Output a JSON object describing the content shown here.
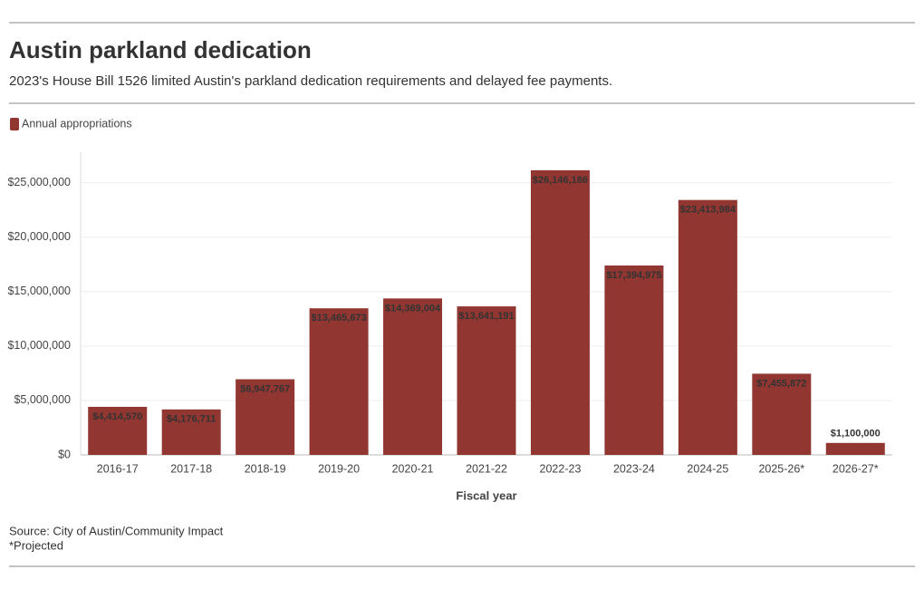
{
  "chart_data": {
    "type": "bar",
    "title": "Austin parkland dedication",
    "subtitle": "2023's House Bill 1526 limited Austin's parkland dedication requirements and delayed fee payments.",
    "categories": [
      "2016-17",
      "2017-18",
      "2018-19",
      "2019-20",
      "2020-21",
      "2021-22",
      "2022-23",
      "2023-24",
      "2024-25",
      "2025-26*",
      "2026-27*"
    ],
    "series": [
      {
        "name": "Annual appropriations",
        "color": "#913631",
        "values": [
          4414570,
          4176711,
          6947767,
          13465673,
          14369004,
          13641191,
          26146186,
          17394975,
          23413984,
          7455872,
          1100000
        ],
        "value_labels": [
          "$4,414,570",
          "$4,176,711",
          "$6,947,767",
          "$13,465,673",
          "$14,369,004",
          "$13,641,191",
          "$26,146,186",
          "$17,394,975",
          "$23,413,984",
          "$7,455,872",
          "$1,100,000"
        ]
      }
    ],
    "x_label": "Fiscal year",
    "ylim": [
      0,
      27800000
    ],
    "yticks": [
      {
        "value": 0,
        "label": "$0"
      },
      {
        "value": 5000000,
        "label": "$5,000,000"
      },
      {
        "value": 10000000,
        "label": "$10,000,000"
      },
      {
        "value": 15000000,
        "label": "$15,000,000"
      },
      {
        "value": 20000000,
        "label": "$20,000,000"
      },
      {
        "value": 25000000,
        "label": "$25,000,000"
      }
    ],
    "grid": true,
    "legend": "top-left",
    "source": "Source: City of Austin/Community Impact",
    "note": "*Projected"
  }
}
